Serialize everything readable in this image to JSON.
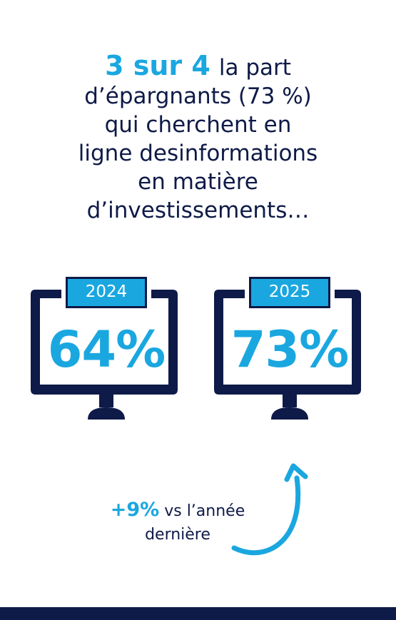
{
  "headline": {
    "highlight": "3 sur 4",
    "line1_rest": "la part",
    "line2": "d’épargnants (73 %)",
    "line3": "qui cherchent en",
    "line4": "ligne desinformations",
    "line5": "en matière",
    "line6": "d’investissements…"
  },
  "monitors": [
    {
      "year": "2024",
      "percent": "64%"
    },
    {
      "year": "2025",
      "percent": "73%"
    }
  ],
  "comparison": {
    "delta": "+9%",
    "text_line1": "vs l’année",
    "text_line2": "dernière"
  },
  "colors": {
    "accent": "#1aa7e0",
    "navy": "#0e1a47",
    "background": "#ffffff"
  },
  "icons": [
    "monitor-icon",
    "curved-up-arrow-icon"
  ]
}
